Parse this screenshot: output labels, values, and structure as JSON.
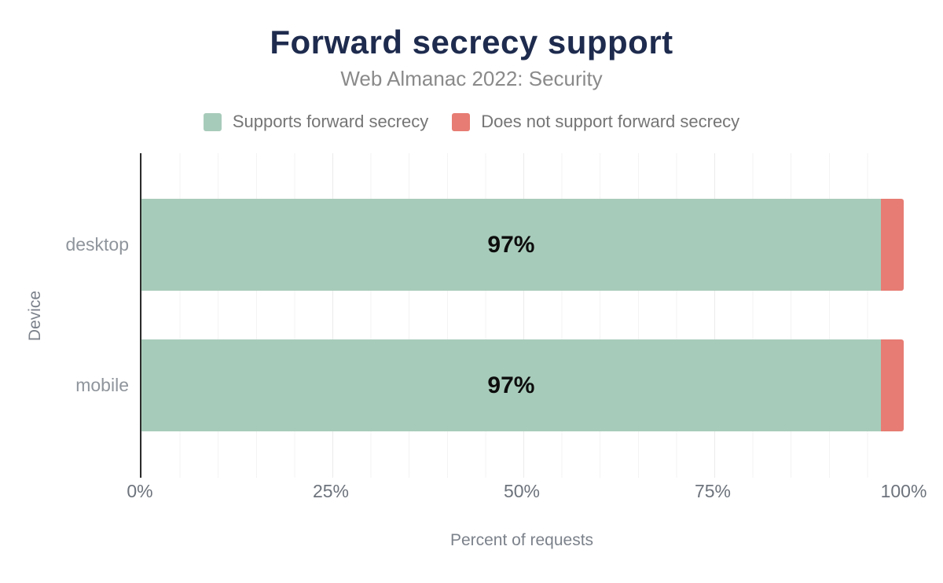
{
  "title": "Forward secrecy support",
  "subtitle": "Web Almanac 2022: Security",
  "legend": {
    "items": [
      {
        "label": "Supports forward secrecy",
        "color": "#a7cbba"
      },
      {
        "label": "Does not support forward secrecy",
        "color": "#e67c73"
      }
    ]
  },
  "chart_data": {
    "type": "bar",
    "orientation": "horizontal",
    "stacked": true,
    "title": "Forward secrecy support",
    "subtitle": "Web Almanac 2022: Security",
    "categories": [
      "desktop",
      "mobile"
    ],
    "series": [
      {
        "name": "Supports forward secrecy",
        "color": "#a7cbba",
        "values": [
          97,
          97
        ],
        "labels": [
          "97%",
          "97%"
        ]
      },
      {
        "name": "Does not support forward secrecy",
        "color": "#e67c73",
        "values": [
          3,
          3
        ]
      }
    ],
    "xlabel": "Percent of requests",
    "ylabel": "Device",
    "xlim": [
      0,
      100
    ],
    "x_ticks": [
      "0%",
      "25%",
      "50%",
      "75%",
      "100%"
    ],
    "grid": "vertical gridlines, minor every 5%, major every 25%",
    "legend_position": "top",
    "value_label_color": "#0d0d0d",
    "axis_line_color": "#2d2d2d"
  }
}
